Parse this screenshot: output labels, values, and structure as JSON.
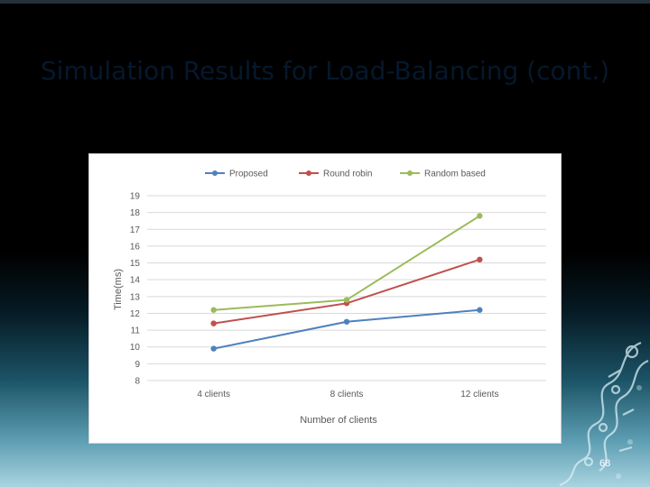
{
  "slide": {
    "title": "Simulation Results for Load-Balancing (cont.)",
    "page_number": "68"
  },
  "colors": {
    "proposed": "#4f81bd",
    "round_robin": "#c0504d",
    "random_based": "#9bbb59",
    "gridline": "#d9d9d9"
  },
  "chart_data": {
    "type": "line",
    "title": "",
    "categories": [
      "4 clients",
      "8 clients",
      "12 clients"
    ],
    "series": [
      {
        "name": "Proposed",
        "values": [
          9.9,
          11.5,
          12.2
        ]
      },
      {
        "name": "Round robin",
        "values": [
          11.4,
          12.6,
          15.2
        ]
      },
      {
        "name": "Random based",
        "values": [
          12.2,
          12.8,
          17.8
        ]
      }
    ],
    "xlabel": "Number of clients",
    "ylabel": "Time(ms)",
    "ylim": [
      8,
      19
    ],
    "yticks": [
      "8",
      "9",
      "10",
      "11",
      "12",
      "13",
      "14",
      "15",
      "16",
      "17",
      "18",
      "19"
    ],
    "grid": true,
    "legend": "top",
    "markers": "circle"
  }
}
